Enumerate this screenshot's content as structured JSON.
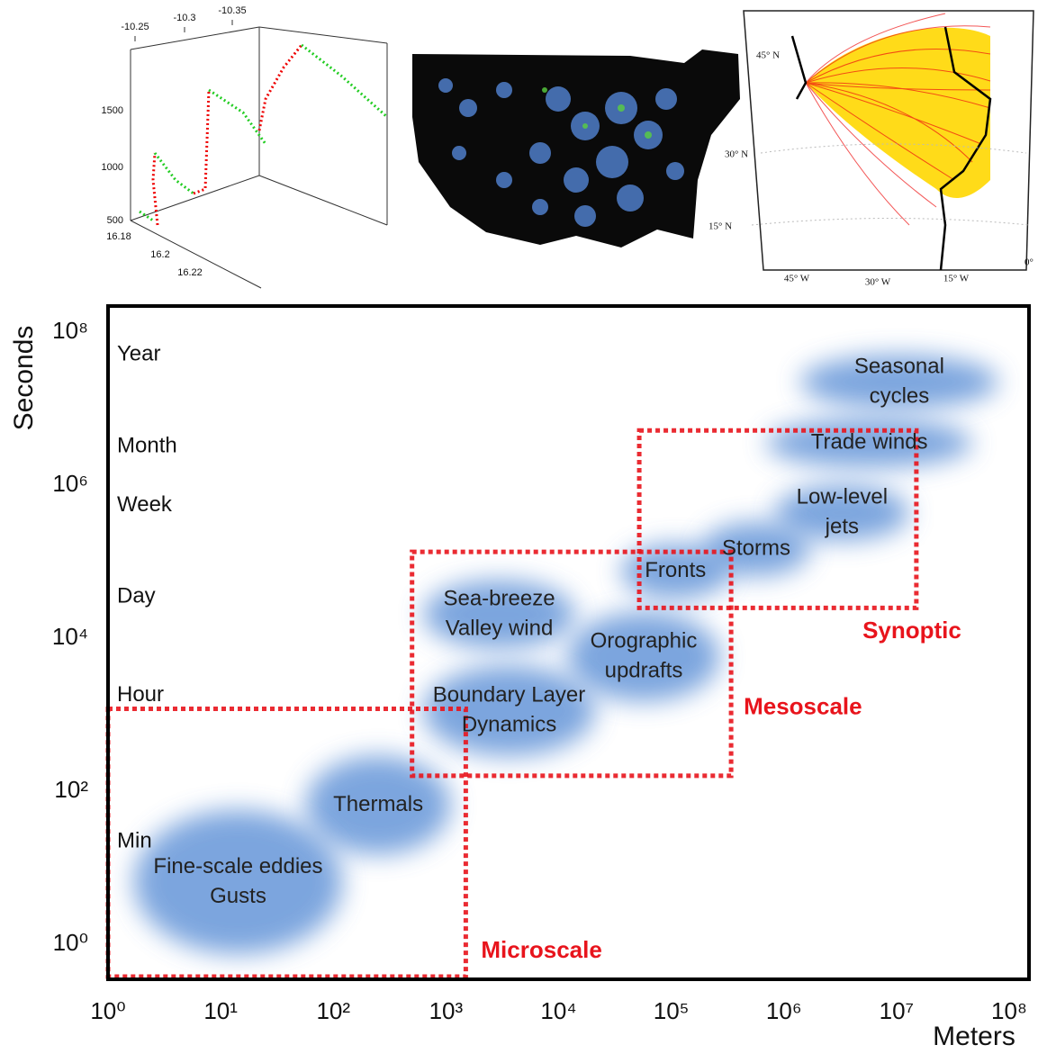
{
  "chart_data": {
    "type": "scale-diagram",
    "x_label": "Meters",
    "y_label": "Seconds",
    "log_x": true,
    "log_y": true,
    "xlim": [
      1,
      150000000
    ],
    "ylim": [
      0.35,
      220000000
    ],
    "xticks": [
      {
        "value": 1,
        "label": "10⁰"
      },
      {
        "value": 10,
        "label": "10¹"
      },
      {
        "value": 100,
        "label": "10²"
      },
      {
        "value": 1000,
        "label": "10³"
      },
      {
        "value": 10000,
        "label": "10⁴"
      },
      {
        "value": 100000,
        "label": "10⁵"
      },
      {
        "value": 1000000,
        "label": "10⁶"
      },
      {
        "value": 10000000,
        "label": "10⁷"
      },
      {
        "value": 100000000,
        "label": "10⁸"
      }
    ],
    "yticks": [
      {
        "value": 1,
        "label": "10⁰"
      },
      {
        "value": 100,
        "label": "10²"
      },
      {
        "value": 10000,
        "label": "10⁴"
      },
      {
        "value": 1000000,
        "label": "10⁶"
      },
      {
        "value": 100000000,
        "label": "10⁸"
      }
    ],
    "time_labels": [
      {
        "label": "Year",
        "value": 51000000
      },
      {
        "label": "Month",
        "value": 3200000
      },
      {
        "label": "Week",
        "value": 540000
      },
      {
        "label": "Day",
        "value": 35000
      },
      {
        "label": "Hour",
        "value": 1800
      },
      {
        "label": "Min",
        "value": 22
      }
    ],
    "blob_color": "#5b8fd6",
    "phenomena": [
      {
        "label": [
          "Seasonal",
          "cycles"
        ],
        "x": [
          1400000,
          80000000
        ],
        "y": [
          10000000,
          50000000
        ]
      },
      {
        "label": [
          "Trade winds"
        ],
        "x": [
          700000,
          47000000
        ],
        "y": [
          1700000,
          7400000
        ]
      },
      {
        "label": [
          "Low-level",
          "jets"
        ],
        "x": [
          830000,
          13000000
        ],
        "y": [
          190000,
          1000000
        ]
      },
      {
        "label": [
          "Storms"
        ],
        "x": [
          190000,
          1700000
        ],
        "y": [
          65000,
          330000
        ]
      },
      {
        "label": [
          "Fronts"
        ],
        "x": [
          36000,
          330000
        ],
        "y": [
          33000,
          170000
        ]
      },
      {
        "label": [
          "Sea-breeze",
          "Valley wind"
        ],
        "x": [
          630,
          14000
        ],
        "y": [
          7400,
          57000
        ]
      },
      {
        "label": [
          "Orographic",
          "updrafts"
        ],
        "x": [
          12000,
          270000
        ],
        "y": [
          1500,
          22000
        ]
      },
      {
        "label": [
          "Boundary Layer",
          "Dynamics"
        ],
        "x": [
          630,
          21000
        ],
        "y": [
          290,
          4400
        ]
      },
      {
        "label": [
          "Thermals"
        ],
        "x": [
          57,
          1100
        ],
        "y": [
          15,
          290
        ]
      },
      {
        "label": [
          "Fine-scale eddies",
          "Gusts"
        ],
        "x": [
          1.7,
          120
        ],
        "y": [
          0.75,
          57
        ]
      }
    ],
    "scale_color": "#e8141c",
    "scales": [
      {
        "label": "Microscale",
        "x": [
          1,
          1500
        ],
        "y": [
          0.38,
          1200
        ]
      },
      {
        "label": "Mesoscale",
        "x": [
          500,
          340000
        ],
        "y": [
          160,
          135000
        ]
      },
      {
        "label": "Synoptic",
        "x": [
          52000,
          15000000
        ],
        "y": [
          25000,
          5200000
        ]
      }
    ]
  },
  "panels": {
    "plot3d": {
      "x_labels": [
        "-10.25",
        "-10.3",
        "-10.35"
      ],
      "z_labels": [
        "1500",
        "1000",
        "500"
      ],
      "y_labels": [
        "16.18",
        "16.2",
        "16.22"
      ]
    },
    "map": {
      "lat_labels": [
        "45° N",
        "30° N",
        "15° N"
      ],
      "lon_labels": [
        "45° W",
        "30° W",
        "15° W",
        "0°"
      ]
    }
  }
}
